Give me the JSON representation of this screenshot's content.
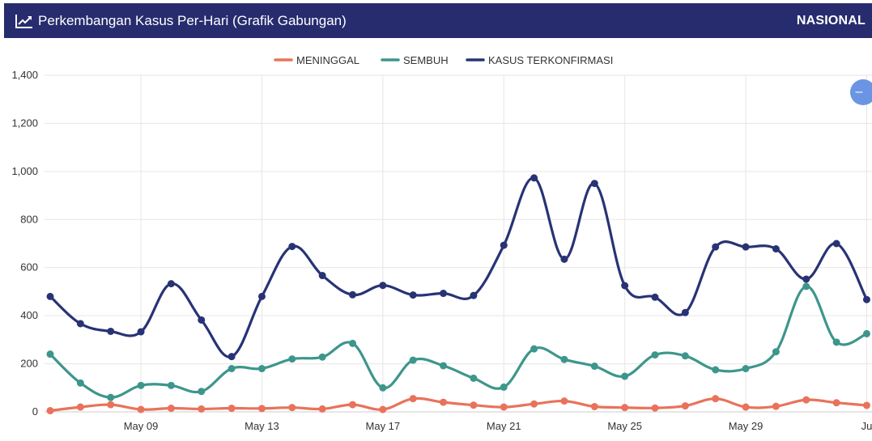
{
  "header": {
    "title": "Perkembangan Kasus Per-Hari (Grafik Gabungan)",
    "scope": "NASIONAL",
    "icon": "line-chart-icon"
  },
  "collapse_button": {
    "label": "–",
    "icon": "minus-icon"
  },
  "colors": {
    "header_bg": "#262c6e",
    "meninggal": "#e8735a",
    "sembuh": "#3d968c",
    "kasus": "#283375"
  },
  "chart_data": {
    "type": "line",
    "title": "",
    "xlabel": "",
    "ylabel": "",
    "ylim": [
      0,
      1400
    ],
    "yticks": [
      0,
      200,
      400,
      600,
      800,
      1000,
      1200,
      1400
    ],
    "ytick_labels": [
      "0",
      "200",
      "400",
      "600",
      "800",
      "1,000",
      "1,200",
      "1,400"
    ],
    "x": [
      "2020-05-06",
      "2020-05-07",
      "2020-05-08",
      "2020-05-09",
      "2020-05-10",
      "2020-05-11",
      "2020-05-12",
      "2020-05-13",
      "2020-05-14",
      "2020-05-15",
      "2020-05-16",
      "2020-05-17",
      "2020-05-18",
      "2020-05-19",
      "2020-05-20",
      "2020-05-21",
      "2020-05-22",
      "2020-05-23",
      "2020-05-24",
      "2020-05-25",
      "2020-05-26",
      "2020-05-27",
      "2020-05-28",
      "2020-05-29",
      "2020-05-30",
      "2020-05-31",
      "2020-06-01",
      "2020-06-02"
    ],
    "xtick_labels": [
      "May 09",
      "May 13",
      "May 17",
      "May 21",
      "May 25",
      "May 29",
      "Ju"
    ],
    "grid": true,
    "legend_position": "top-center",
    "series": [
      {
        "name": "MENINGGAL",
        "color": "#e8735a",
        "values": [
          5,
          20,
          30,
          10,
          15,
          12,
          15,
          14,
          18,
          12,
          30,
          10,
          55,
          40,
          28,
          20,
          33,
          45,
          22,
          18,
          16,
          25,
          55,
          20,
          23,
          50,
          38,
          27
        ]
      },
      {
        "name": "SEMBUH",
        "color": "#3d968c",
        "values": [
          240,
          120,
          60,
          110,
          110,
          85,
          180,
          180,
          220,
          228,
          285,
          100,
          215,
          192,
          140,
          103,
          262,
          218,
          190,
          148,
          237,
          233,
          175,
          180,
          250,
          522,
          290,
          325
        ]
      },
      {
        "name": "KASUS TERKONFIRMASI",
        "color": "#283375",
        "values": [
          480,
          367,
          335,
          333,
          533,
          382,
          230,
          480,
          688,
          567,
          487,
          526,
          486,
          493,
          484,
          693,
          973,
          635,
          950,
          525,
          477,
          413,
          686,
          686,
          678,
          552,
          700,
          467
        ]
      }
    ]
  }
}
